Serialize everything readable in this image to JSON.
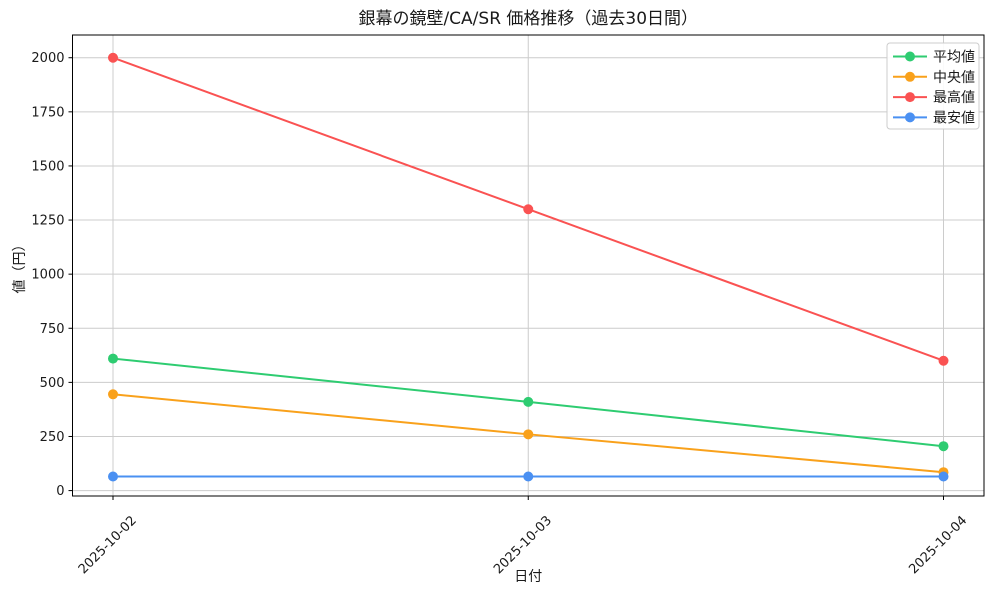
{
  "chart_data": {
    "type": "line",
    "title": "銀幕の鏡壁/CA/SR 価格推移（過去30日間）",
    "xlabel": "日付",
    "ylabel": "値（円）",
    "categories": [
      "2025-10-02",
      "2025-10-03",
      "2025-10-04"
    ],
    "series": [
      {
        "name": "平均値",
        "color": "#2ecc71",
        "values": [
          610,
          410,
          205
        ]
      },
      {
        "name": "中央値",
        "color": "#f9a11b",
        "values": [
          445,
          260,
          85
        ]
      },
      {
        "name": "最高値",
        "color": "#fa5252",
        "values": [
          2000,
          1300,
          600
        ]
      },
      {
        "name": "最安値",
        "color": "#4a90f2",
        "values": [
          65,
          65,
          65
        ]
      }
    ],
    "yticks": [
      0,
      250,
      500,
      750,
      1000,
      1250,
      1500,
      1750,
      2000
    ],
    "ylim": [
      -25,
      2105
    ],
    "grid": true,
    "grid_color": "#cccccc",
    "spine_color": "#000000",
    "background": "#ffffff",
    "legend_position": "upper right",
    "x_tick_rotation": 45,
    "line_width": 2,
    "marker": "circle"
  }
}
